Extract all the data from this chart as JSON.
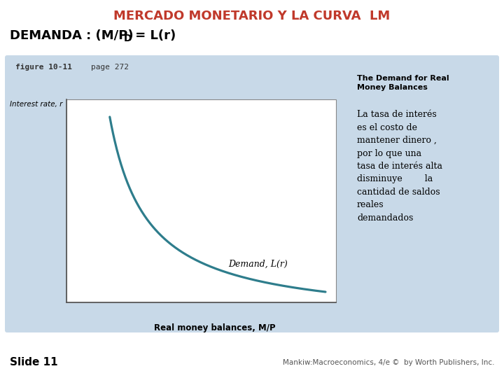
{
  "title": "MERCADO MONETARIO Y LA CURVA  LM",
  "title_color": "#C0392B",
  "title_fontsize": 13,
  "demanda_base": "DEMANDA : (M/P)",
  "demanda_sup": "D",
  "demanda_rest": " = L(r)",
  "demanda_fontsize": 13,
  "figure_label": "figure 10-11",
  "page_label": "page 272",
  "ylabel": "Interest rate, r",
  "xlabel": "Real money balances, M/P",
  "curve_label": "Demand, L(r)",
  "curve_color": "#2E7D8C",
  "bg_color": "#C8D9E8",
  "plot_bg_color": "#FFFFFF",
  "sidebar_title": "The Demand for Real\nMoney Balances",
  "sidebar_body": "La tasa de interés\nes el costo de\nmantener dinero ,\npor lo que una\ntasa de interés alta\ndisminuye        la\ncantidad de saldos\nreales\ndemandados",
  "slide_text": "Slide 11",
  "footer_text": "Mankiw:Macroeconomics, 4/e ©  by Worth Publishers, Inc.",
  "slide_fontsize": 11,
  "footer_fontsize": 7.5,
  "sidebar_title_fontsize": 8,
  "sidebar_body_fontsize": 9,
  "figure_label_fontsize": 8,
  "ylabel_fontsize": 7.5,
  "xlabel_fontsize": 8.5,
  "curve_label_fontsize": 9
}
